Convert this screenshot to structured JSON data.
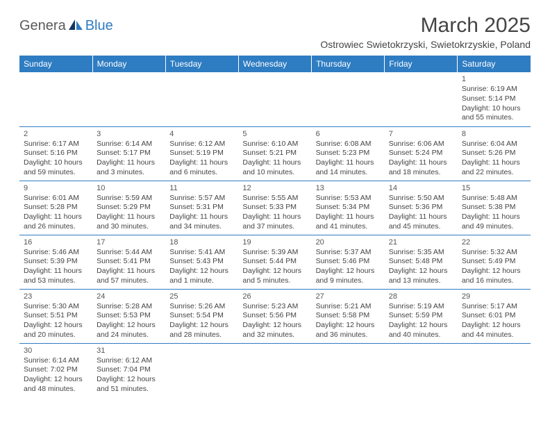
{
  "header": {
    "logo_part1": "Genera",
    "logo_part2": "Blue",
    "month_title": "March 2025",
    "location": "Ostrowiec Swietokrzyski, Swietokrzyskie, Poland"
  },
  "colors": {
    "header_bg": "#2e7cc2",
    "header_text": "#ffffff",
    "text": "#444444",
    "logo_gray": "#5a5a5a",
    "logo_blue": "#2e7cc2",
    "row_divider": "#2e7cc2",
    "background": "#ffffff"
  },
  "typography": {
    "month_title_fontsize": 30,
    "location_fontsize": 14,
    "dayheader_fontsize": 12,
    "cell_fontsize": 10.5,
    "logo_fontsize": 20
  },
  "calendar": {
    "day_headers": [
      "Sunday",
      "Monday",
      "Tuesday",
      "Wednesday",
      "Thursday",
      "Friday",
      "Saturday"
    ],
    "weeks": [
      [
        null,
        null,
        null,
        null,
        null,
        null,
        {
          "n": "1",
          "sunrise": "Sunrise: 6:19 AM",
          "sunset": "Sunset: 5:14 PM",
          "daylight": "Daylight: 10 hours and 55 minutes."
        }
      ],
      [
        {
          "n": "2",
          "sunrise": "Sunrise: 6:17 AM",
          "sunset": "Sunset: 5:16 PM",
          "daylight": "Daylight: 10 hours and 59 minutes."
        },
        {
          "n": "3",
          "sunrise": "Sunrise: 6:14 AM",
          "sunset": "Sunset: 5:17 PM",
          "daylight": "Daylight: 11 hours and 3 minutes."
        },
        {
          "n": "4",
          "sunrise": "Sunrise: 6:12 AM",
          "sunset": "Sunset: 5:19 PM",
          "daylight": "Daylight: 11 hours and 6 minutes."
        },
        {
          "n": "5",
          "sunrise": "Sunrise: 6:10 AM",
          "sunset": "Sunset: 5:21 PM",
          "daylight": "Daylight: 11 hours and 10 minutes."
        },
        {
          "n": "6",
          "sunrise": "Sunrise: 6:08 AM",
          "sunset": "Sunset: 5:23 PM",
          "daylight": "Daylight: 11 hours and 14 minutes."
        },
        {
          "n": "7",
          "sunrise": "Sunrise: 6:06 AM",
          "sunset": "Sunset: 5:24 PM",
          "daylight": "Daylight: 11 hours and 18 minutes."
        },
        {
          "n": "8",
          "sunrise": "Sunrise: 6:04 AM",
          "sunset": "Sunset: 5:26 PM",
          "daylight": "Daylight: 11 hours and 22 minutes."
        }
      ],
      [
        {
          "n": "9",
          "sunrise": "Sunrise: 6:01 AM",
          "sunset": "Sunset: 5:28 PM",
          "daylight": "Daylight: 11 hours and 26 minutes."
        },
        {
          "n": "10",
          "sunrise": "Sunrise: 5:59 AM",
          "sunset": "Sunset: 5:29 PM",
          "daylight": "Daylight: 11 hours and 30 minutes."
        },
        {
          "n": "11",
          "sunrise": "Sunrise: 5:57 AM",
          "sunset": "Sunset: 5:31 PM",
          "daylight": "Daylight: 11 hours and 34 minutes."
        },
        {
          "n": "12",
          "sunrise": "Sunrise: 5:55 AM",
          "sunset": "Sunset: 5:33 PM",
          "daylight": "Daylight: 11 hours and 37 minutes."
        },
        {
          "n": "13",
          "sunrise": "Sunrise: 5:53 AM",
          "sunset": "Sunset: 5:34 PM",
          "daylight": "Daylight: 11 hours and 41 minutes."
        },
        {
          "n": "14",
          "sunrise": "Sunrise: 5:50 AM",
          "sunset": "Sunset: 5:36 PM",
          "daylight": "Daylight: 11 hours and 45 minutes."
        },
        {
          "n": "15",
          "sunrise": "Sunrise: 5:48 AM",
          "sunset": "Sunset: 5:38 PM",
          "daylight": "Daylight: 11 hours and 49 minutes."
        }
      ],
      [
        {
          "n": "16",
          "sunrise": "Sunrise: 5:46 AM",
          "sunset": "Sunset: 5:39 PM",
          "daylight": "Daylight: 11 hours and 53 minutes."
        },
        {
          "n": "17",
          "sunrise": "Sunrise: 5:44 AM",
          "sunset": "Sunset: 5:41 PM",
          "daylight": "Daylight: 11 hours and 57 minutes."
        },
        {
          "n": "18",
          "sunrise": "Sunrise: 5:41 AM",
          "sunset": "Sunset: 5:43 PM",
          "daylight": "Daylight: 12 hours and 1 minute."
        },
        {
          "n": "19",
          "sunrise": "Sunrise: 5:39 AM",
          "sunset": "Sunset: 5:44 PM",
          "daylight": "Daylight: 12 hours and 5 minutes."
        },
        {
          "n": "20",
          "sunrise": "Sunrise: 5:37 AM",
          "sunset": "Sunset: 5:46 PM",
          "daylight": "Daylight: 12 hours and 9 minutes."
        },
        {
          "n": "21",
          "sunrise": "Sunrise: 5:35 AM",
          "sunset": "Sunset: 5:48 PM",
          "daylight": "Daylight: 12 hours and 13 minutes."
        },
        {
          "n": "22",
          "sunrise": "Sunrise: 5:32 AM",
          "sunset": "Sunset: 5:49 PM",
          "daylight": "Daylight: 12 hours and 16 minutes."
        }
      ],
      [
        {
          "n": "23",
          "sunrise": "Sunrise: 5:30 AM",
          "sunset": "Sunset: 5:51 PM",
          "daylight": "Daylight: 12 hours and 20 minutes."
        },
        {
          "n": "24",
          "sunrise": "Sunrise: 5:28 AM",
          "sunset": "Sunset: 5:53 PM",
          "daylight": "Daylight: 12 hours and 24 minutes."
        },
        {
          "n": "25",
          "sunrise": "Sunrise: 5:26 AM",
          "sunset": "Sunset: 5:54 PM",
          "daylight": "Daylight: 12 hours and 28 minutes."
        },
        {
          "n": "26",
          "sunrise": "Sunrise: 5:23 AM",
          "sunset": "Sunset: 5:56 PM",
          "daylight": "Daylight: 12 hours and 32 minutes."
        },
        {
          "n": "27",
          "sunrise": "Sunrise: 5:21 AM",
          "sunset": "Sunset: 5:58 PM",
          "daylight": "Daylight: 12 hours and 36 minutes."
        },
        {
          "n": "28",
          "sunrise": "Sunrise: 5:19 AM",
          "sunset": "Sunset: 5:59 PM",
          "daylight": "Daylight: 12 hours and 40 minutes."
        },
        {
          "n": "29",
          "sunrise": "Sunrise: 5:17 AM",
          "sunset": "Sunset: 6:01 PM",
          "daylight": "Daylight: 12 hours and 44 minutes."
        }
      ],
      [
        {
          "n": "30",
          "sunrise": "Sunrise: 6:14 AM",
          "sunset": "Sunset: 7:02 PM",
          "daylight": "Daylight: 12 hours and 48 minutes."
        },
        {
          "n": "31",
          "sunrise": "Sunrise: 6:12 AM",
          "sunset": "Sunset: 7:04 PM",
          "daylight": "Daylight: 12 hours and 51 minutes."
        },
        null,
        null,
        null,
        null,
        null
      ]
    ]
  }
}
